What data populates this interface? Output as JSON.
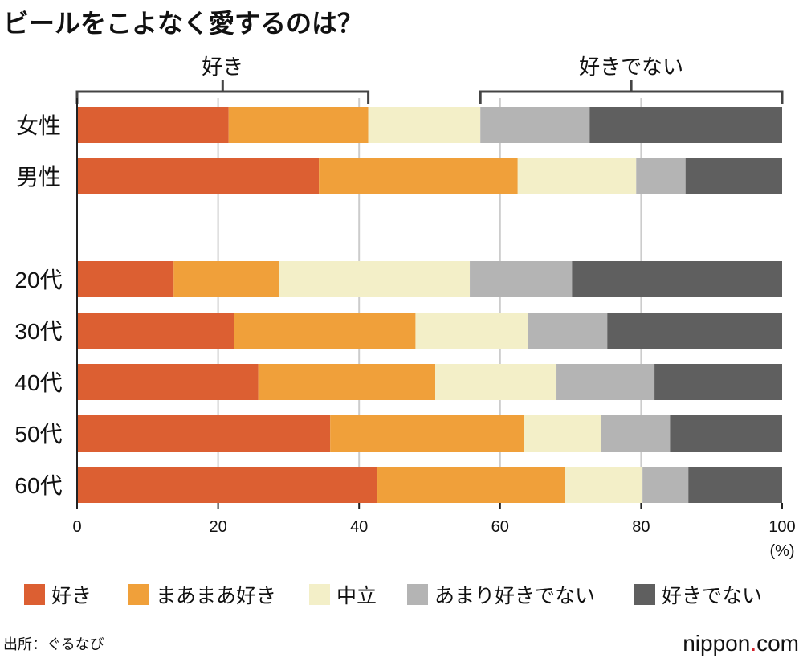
{
  "chart_data": {
    "type": "bar",
    "orientation": "horizontal",
    "stacked": true,
    "title": "ビールをこよなく愛するのは？",
    "group_labels": {
      "left": "好き",
      "right": "好きでない"
    },
    "categories": [
      "女性",
      "男性",
      "20代",
      "30代",
      "40代",
      "50代",
      "60代"
    ],
    "series": [
      {
        "name": "好き",
        "color": "#dc5f32",
        "values": [
          21.5,
          34.3,
          13.7,
          22.3,
          25.7,
          35.9,
          42.6
        ]
      },
      {
        "name": "まあまあ好き",
        "color": "#f0a03a",
        "values": [
          19.8,
          28.2,
          14.9,
          25.7,
          25.1,
          27.5,
          26.6
        ]
      },
      {
        "name": "中立",
        "color": "#f3efc8",
        "values": [
          15.9,
          16.8,
          27.1,
          16.0,
          17.2,
          10.9,
          11.0
        ]
      },
      {
        "name": "あまり好きでない",
        "color": "#b4b4b4",
        "values": [
          15.5,
          7.0,
          14.5,
          11.2,
          13.9,
          9.8,
          6.5
        ]
      },
      {
        "name": "好きでない",
        "color": "#5f5f5f",
        "values": [
          27.3,
          13.7,
          29.8,
          24.8,
          18.1,
          15.9,
          13.3
        ]
      }
    ],
    "xlim": [
      0,
      100
    ],
    "xticks": [
      "0",
      "20",
      "40",
      "60",
      "80",
      "100"
    ],
    "xunit": "(%)",
    "grid": true,
    "legend": "bottom"
  },
  "source": "出所：ぐるなび",
  "brand": "nippon.com"
}
